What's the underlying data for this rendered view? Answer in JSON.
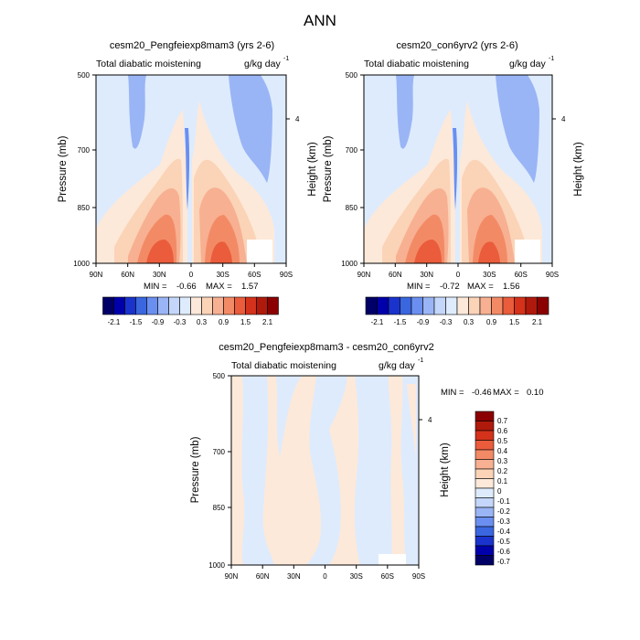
{
  "page": {
    "title": "ANN"
  },
  "colors": {
    "neg": [
      "#000066",
      "#0000aa",
      "#1a33cc",
      "#3a66e0",
      "#6a8ff0",
      "#9ab5f5",
      "#c4d7fa",
      "#deebfd"
    ],
    "pos": [
      "#fde9d9",
      "#fbd3b7",
      "#f7b091",
      "#f38a66",
      "#ea5c3b",
      "#d4321b",
      "#b01a0c",
      "#8b0000"
    ],
    "frame": "#000000"
  },
  "chart_data": [
    {
      "type": "heatmap",
      "title": "cesm20_Pengfeiexp8mam3 (yrs 2-6)",
      "left_label": "Total diabatic moistening",
      "right_label": "g/kg day",
      "units_exponent": "-1",
      "ylabel": "Pressure (mb)",
      "right_axis_label": "Height (km)",
      "right_ticks": [
        "4"
      ],
      "y_ticks": [
        "500",
        "700",
        "850",
        "1000"
      ],
      "x_ticks": [
        "90N",
        "60N",
        "30N",
        "0",
        "30S",
        "60S",
        "90S"
      ],
      "min_label": "MIN =",
      "min_value": "-0.66",
      "max_label": "MAX =",
      "max_value": "1.57",
      "colorbar_labels": [
        "-2.1",
        "-1.5",
        "-0.9",
        "-0.3",
        "0.3",
        "0.9",
        "1.5",
        "2.1"
      ]
    },
    {
      "type": "heatmap",
      "title": "cesm20_con6yrv2 (yrs 2-6)",
      "left_label": "Total diabatic moistening",
      "right_label": "g/kg day",
      "units_exponent": "-1",
      "ylabel": "Pressure (mb)",
      "right_axis_label": "Height (km)",
      "right_ticks": [
        "4"
      ],
      "y_ticks": [
        "500",
        "700",
        "850",
        "1000"
      ],
      "x_ticks": [
        "90N",
        "60N",
        "30N",
        "0",
        "30S",
        "60S",
        "90S"
      ],
      "min_label": "MIN =",
      "min_value": "-0.72",
      "max_label": "MAX =",
      "max_value": "1.56",
      "colorbar_labels": [
        "-2.1",
        "-1.5",
        "-0.9",
        "-0.3",
        "0.3",
        "0.9",
        "1.5",
        "2.1"
      ]
    },
    {
      "type": "heatmap",
      "title": "cesm20_Pengfeiexp8mam3 - cesm20_con6yrv2",
      "left_label": "Total diabatic moistening",
      "right_label": "g/kg day",
      "units_exponent": "-1",
      "ylabel": "Pressure (mb)",
      "right_axis_label": "Height (km)",
      "right_ticks": [
        "4"
      ],
      "y_ticks": [
        "500",
        "700",
        "850",
        "1000"
      ],
      "x_ticks": [
        "90N",
        "60N",
        "30N",
        "0",
        "30S",
        "60S",
        "90S"
      ],
      "min_label": "MIN =",
      "min_value": "-0.46",
      "max_label": "MAX =",
      "max_value": "0.10",
      "colorbar_labels": [
        "0.7",
        "0.6",
        "0.5",
        "0.4",
        "0.3",
        "0.2",
        "0.1",
        "0",
        "-0.1",
        "-0.2",
        "-0.3",
        "-0.4",
        "-0.5",
        "-0.6",
        "-0.7"
      ]
    }
  ]
}
